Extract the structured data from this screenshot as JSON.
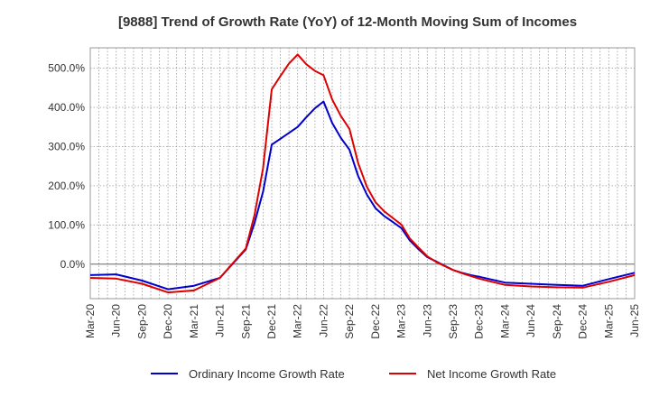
{
  "chart_data": {
    "type": "line",
    "title": "[9888]  Trend of Growth Rate (YoY) of 12-Month Moving Sum of Incomes",
    "xlabel": "",
    "ylabel": "",
    "x_tick_labels": [
      "Mar-20",
      "Jun-20",
      "Sep-20",
      "Dec-20",
      "Mar-21",
      "Jun-21",
      "Sep-21",
      "Dec-21",
      "Mar-22",
      "Jun-22",
      "Sep-22",
      "Dec-22",
      "Mar-23",
      "Jun-23",
      "Sep-23",
      "Dec-23",
      "Mar-24",
      "Jun-24",
      "Sep-24",
      "Dec-24",
      "Mar-25",
      "Jun-25"
    ],
    "y_ticks": [
      0,
      100,
      200,
      300,
      400,
      500
    ],
    "y_tick_labels": [
      "0.0%",
      "100.0%",
      "200.0%",
      "300.0%",
      "400.0%",
      "500.0%"
    ],
    "ylim": [
      -88,
      552
    ],
    "x_unit": "months since Mar-20",
    "xlim": [
      0,
      63
    ],
    "grid": true,
    "legend_position": "bottom",
    "series": [
      {
        "name": "Ordinary Income Growth Rate",
        "color": "#0000cc",
        "x": [
          0,
          3,
          6,
          9,
          12,
          15,
          18,
          19,
          20,
          21,
          22,
          23,
          24,
          25,
          26,
          27,
          28,
          29,
          30,
          31,
          32,
          33,
          34,
          35,
          36,
          37,
          38,
          39,
          40,
          41,
          42,
          43,
          44,
          45,
          48,
          51,
          54,
          57,
          60,
          63
        ],
        "values": [
          -28,
          -26,
          -42,
          -64,
          -55,
          -35,
          38,
          105,
          185,
          305,
          320,
          335,
          350,
          375,
          398,
          415,
          360,
          322,
          292,
          225,
          178,
          143,
          123,
          108,
          92,
          60,
          38,
          18,
          7,
          -4,
          -15,
          -22,
          -28,
          -32,
          -47,
          -50,
          -53,
          -55,
          -38,
          -22
        ]
      },
      {
        "name": "Net Income Growth Rate",
        "color": "#dd0000",
        "x": [
          0,
          3,
          6,
          9,
          12,
          15,
          18,
          19,
          20,
          21,
          22,
          23,
          24,
          25,
          26,
          27,
          28,
          29,
          30,
          31,
          32,
          33,
          34,
          35,
          36,
          37,
          38,
          39,
          40,
          41,
          42,
          43,
          44,
          45,
          48,
          51,
          54,
          57,
          60,
          63
        ],
        "values": [
          -35,
          -37,
          -50,
          -72,
          -67,
          -35,
          40,
          125,
          245,
          446,
          480,
          512,
          535,
          510,
          493,
          482,
          420,
          378,
          345,
          258,
          198,
          158,
          135,
          118,
          101,
          65,
          42,
          20,
          6,
          -5,
          -15,
          -23,
          -30,
          -37,
          -53,
          -57,
          -59,
          -60,
          -45,
          -28
        ]
      }
    ]
  }
}
